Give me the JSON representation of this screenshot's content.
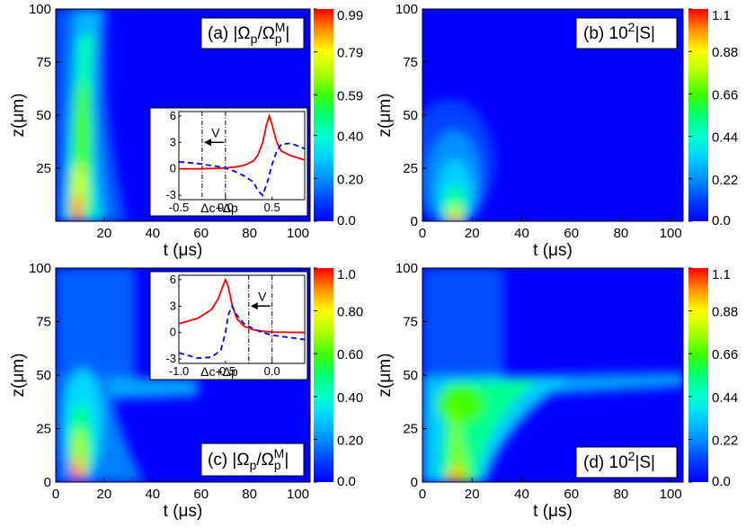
{
  "colors": {
    "colormap": [
      "#0000ff",
      "#0055ff",
      "#00c0ff",
      "#00ffc0",
      "#00ff40",
      "#80ff00",
      "#ffff00",
      "#ffa000",
      "#ff3000",
      "#ff0000"
    ],
    "inset_solid": "#ff0000",
    "inset_dashed": "#0000ff"
  },
  "chart_data": [
    {
      "type": "heatmap",
      "panel": "(a)",
      "title": "(a) |Ωp/ΩpM|",
      "xlabel": "t (μs)",
      "ylabel": "z(μm)",
      "xlim": [
        0,
        105
      ],
      "ylim": [
        0,
        100
      ],
      "xticks": [
        "20",
        "40",
        "60",
        "80",
        "100"
      ],
      "yticks": [
        "25",
        "50",
        "75",
        "100"
      ],
      "colorbar_labels": [
        "0.99",
        "0.79",
        "0.59",
        "0.40",
        "0.20",
        "0.0"
      ],
      "colorbar_range": [
        0,
        0.99
      ],
      "features": {
        "peak_t": 12,
        "peak_z": 2,
        "peak_value": 0.99,
        "ridge_end_t": 18,
        "ridge_end_z": 100
      },
      "inset": {
        "xlabel": "Δc+Δp",
        "xlim": [
          -0.5,
          0.85
        ],
        "ylim": [
          -3.5,
          6.5
        ],
        "xticks": [
          "-0.5",
          "0.0",
          "0.5"
        ],
        "yticks": [
          "6",
          "3",
          "0",
          "-3"
        ],
        "arrow_label": "V",
        "vlines": [
          -0.25,
          0.0
        ],
        "solid_x": [
          -0.5,
          -0.3,
          -0.1,
          0.0,
          0.1,
          0.2,
          0.3,
          0.35,
          0.4,
          0.44,
          0.47,
          0.5,
          0.55,
          0.6,
          0.7,
          0.85
        ],
        "solid_y": [
          0.0,
          0.0,
          0.05,
          0.1,
          0.2,
          0.4,
          0.9,
          1.6,
          3.0,
          5.0,
          6.0,
          5.0,
          3.0,
          2.0,
          1.5,
          1.0
        ],
        "dashed_x": [
          -0.5,
          -0.3,
          -0.1,
          0.0,
          0.1,
          0.2,
          0.3,
          0.35,
          0.4,
          0.45,
          0.5,
          0.55,
          0.6,
          0.7,
          0.85
        ],
        "dashed_y": [
          0.8,
          0.6,
          0.3,
          0.1,
          -0.3,
          -0.8,
          -1.5,
          -2.5,
          -3.0,
          -1.5,
          0.5,
          2.0,
          2.8,
          2.9,
          2.3
        ]
      }
    },
    {
      "type": "heatmap",
      "panel": "(b)",
      "title": "(b) 10²|S|",
      "xlabel": "t (μs)",
      "ylabel": "z(μm)",
      "xlim": [
        0,
        105
      ],
      "ylim": [
        0,
        100
      ],
      "xticks": [
        "0",
        "20",
        "40",
        "60",
        "80",
        "100"
      ],
      "yticks": [
        "0",
        "25",
        "50",
        "75",
        "100"
      ],
      "colorbar_labels": [
        "1.1",
        "0.88",
        "0.66",
        "0.44",
        "0.22",
        "0.0"
      ],
      "colorbar_range": [
        0,
        1.1
      ],
      "features": {
        "peak_t": 12,
        "peak_z": 1,
        "peak_value": 1.1
      }
    },
    {
      "type": "heatmap",
      "panel": "(c)",
      "title": "(c) |Ωp/ΩpM|",
      "xlabel": "t (μs)",
      "ylabel": "z(μm)",
      "xlim": [
        0,
        105
      ],
      "ylim": [
        0,
        100
      ],
      "xticks": [
        "0",
        "20",
        "40",
        "60",
        "80",
        "100"
      ],
      "yticks": [
        "0",
        "25",
        "50",
        "75",
        "100"
      ],
      "colorbar_labels": [
        "1.0",
        "0.80",
        "0.60",
        "0.40",
        "0.20",
        "0.0"
      ],
      "colorbar_range": [
        0,
        1.0
      ],
      "features": {
        "peak_t": 12,
        "peak_z": 2,
        "peak_value": 1.0,
        "interface_z": 50
      },
      "inset": {
        "xlabel": "Δc+Δp",
        "xlim": [
          -1.0,
          0.35
        ],
        "ylim": [
          -3.5,
          6.5
        ],
        "xticks": [
          "-1.0",
          "-0.5",
          "0.0"
        ],
        "yticks": [
          "6",
          "3",
          "0",
          "-3"
        ],
        "arrow_label": "V",
        "vlines": [
          -0.25,
          0.0
        ],
        "solid_x": [
          -1.0,
          -0.8,
          -0.65,
          -0.58,
          -0.53,
          -0.5,
          -0.47,
          -0.43,
          -0.38,
          -0.3,
          -0.2,
          -0.1,
          0.0,
          0.35
        ],
        "solid_y": [
          1.0,
          1.6,
          2.6,
          3.8,
          5.2,
          6.0,
          5.2,
          3.2,
          1.6,
          0.7,
          0.3,
          0.15,
          0.05,
          0.0
        ],
        "dashed_x": [
          -1.0,
          -0.8,
          -0.65,
          -0.55,
          -0.5,
          -0.47,
          -0.43,
          -0.38,
          -0.3,
          -0.2,
          -0.1,
          0.0,
          0.35
        ],
        "dashed_y": [
          -2.3,
          -2.9,
          -2.8,
          -2.0,
          0.0,
          2.0,
          3.0,
          2.0,
          1.0,
          0.4,
          0.0,
          -0.3,
          -0.8
        ]
      }
    },
    {
      "type": "heatmap",
      "panel": "(d)",
      "title": "(d) 10²|S|",
      "xlabel": "t (μs)",
      "ylabel": "z(μm)",
      "xlim": [
        0,
        105
      ],
      "ylim": [
        0,
        100
      ],
      "xticks": [
        "0",
        "20",
        "40",
        "60",
        "80",
        "100"
      ],
      "yticks": [
        "0",
        "25",
        "50",
        "75",
        "100"
      ],
      "colorbar_labels": [
        "1.1",
        "0.88",
        "0.66",
        "0.44",
        "0.22",
        "0.0"
      ],
      "colorbar_range": [
        0,
        1.1
      ],
      "features": {
        "peak_t": 12,
        "peak_z": 2,
        "peak_value": 1.1,
        "interface_z": 50
      }
    }
  ]
}
